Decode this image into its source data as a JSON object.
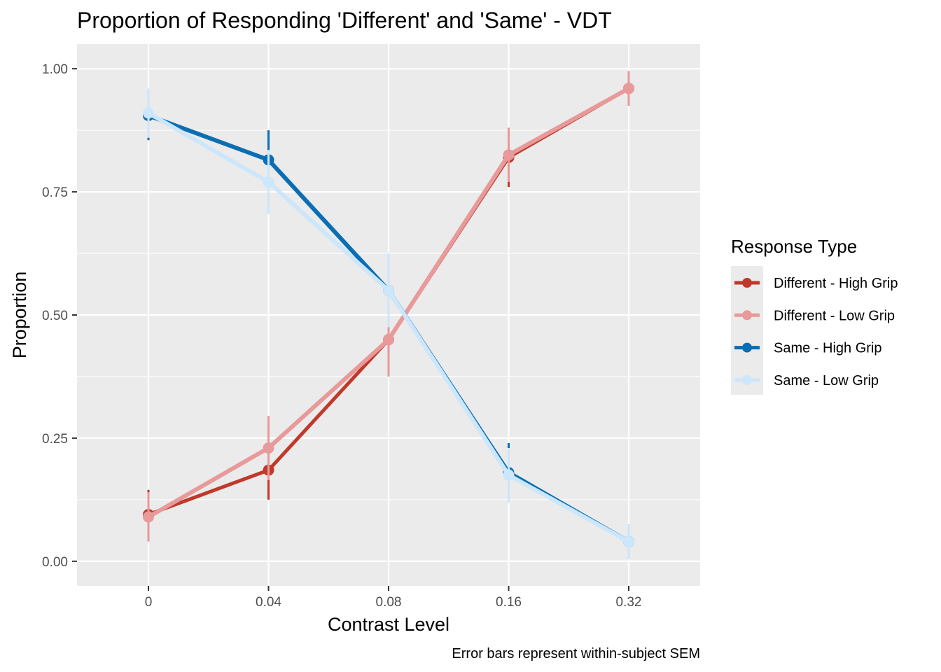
{
  "chart_data": {
    "type": "line",
    "title": "Proportion of Responding 'Different' and 'Same' - VDT",
    "xlabel": "Contrast Level",
    "ylabel": "Proportion",
    "caption": "Error bars represent within-subject SEM",
    "categories": [
      "0",
      "0.04",
      "0.08",
      "0.16",
      "0.32"
    ],
    "y_ticks": [
      "0.00",
      "0.25",
      "0.50",
      "0.75",
      "1.00"
    ],
    "ylim": [
      -0.05,
      1.05
    ],
    "grid": true,
    "legend": {
      "title": "Response Type",
      "placement": "right"
    },
    "series": [
      {
        "name": "Different - High Grip",
        "color": "#c0392b",
        "values": [
          0.095,
          0.185,
          0.45,
          0.82,
          0.96
        ],
        "sem": [
          0.05,
          0.06,
          0.075,
          0.06,
          0.035
        ]
      },
      {
        "name": "Different - Low Grip",
        "color": "#e8999a",
        "values": [
          0.09,
          0.23,
          0.45,
          0.825,
          0.96
        ],
        "sem": [
          0.05,
          0.065,
          0.075,
          0.055,
          0.035
        ]
      },
      {
        "name": "Same - High Grip",
        "color": "#0a6eb4",
        "values": [
          0.905,
          0.815,
          0.55,
          0.18,
          0.04
        ],
        "sem": [
          0.05,
          0.06,
          0.075,
          0.06,
          0.035
        ]
      },
      {
        "name": "Same - Low Grip",
        "color": "#cce6fb",
        "values": [
          0.91,
          0.77,
          0.55,
          0.175,
          0.04
        ],
        "sem": [
          0.05,
          0.065,
          0.075,
          0.055,
          0.035
        ]
      }
    ]
  }
}
